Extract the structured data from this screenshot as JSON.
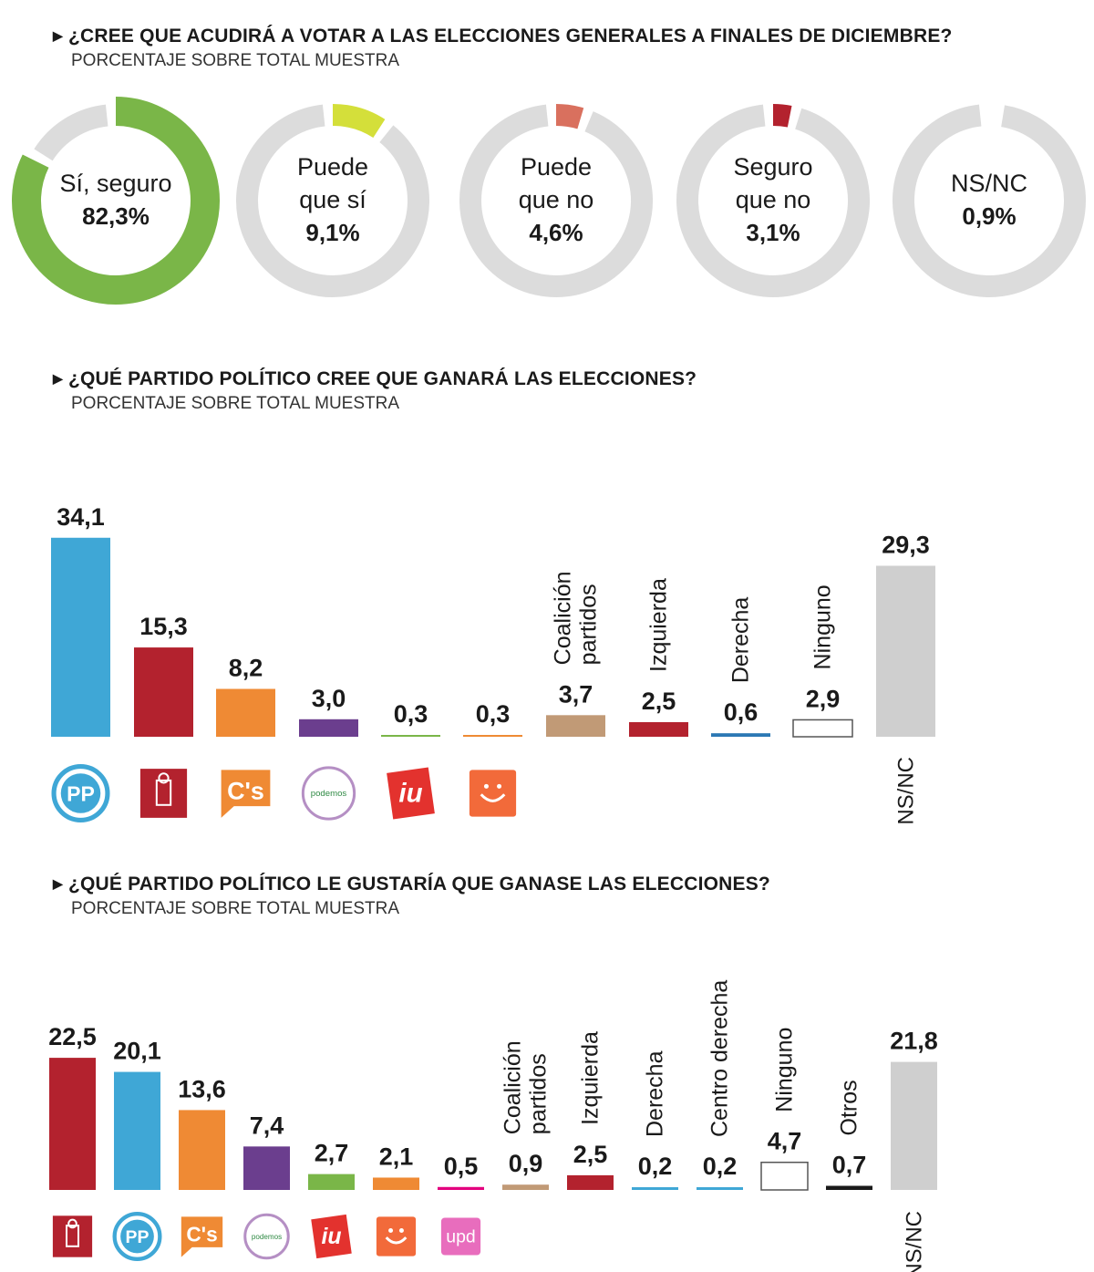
{
  "sections": {
    "turnout": {
      "title": "¿CREE QUE ACUDIRÁ A VOTAR A LAS ELECCIONES GENERALES A FINALES DE DICIEMBRE?",
      "subtitle": "PORCENTAJE SOBRE TOTAL MUESTRA"
    },
    "winner": {
      "title": "¿QUÉ PARTIDO POLÍTICO CREE QUE GANARÁ LAS ELECCIONES?",
      "subtitle": "PORCENTAJE SOBRE TOTAL MUESTRA"
    },
    "preference": {
      "title": "¿QUÉ PARTIDO POLÍTICO LE GUSTARÍA QUE GANASE LAS ELECCIONES?",
      "subtitle": "PORCENTAJE SOBRE TOTAL MUESTRA"
    }
  },
  "colors": {
    "track": "#dcdcdc",
    "si_seguro": "#7ab648",
    "puede_si": "#d4df3a",
    "puede_no": "#d9705e",
    "seguro_no": "#b3222e",
    "pp": "#3fa7d6",
    "psoe": "#b3222e",
    "cs": "#ef8a34",
    "podemos": "#6b3e8e",
    "iu": "#e3322e",
    "upyd": "#e3007e",
    "coalicion": "#c19a76",
    "derecha": "#2c78b4",
    "otros": "#1a1a1a",
    "nsnc": "#cfcfcf"
  },
  "chart_data": [
    {
      "type": "pie",
      "categories": [
        "Sí, seguro",
        "Puede que sí",
        "Puede que no",
        "Seguro que no",
        "NS/NC"
      ],
      "value_labels": [
        "82,3%",
        "9,1%",
        "4,6%",
        "3,1%",
        "0,9%"
      ],
      "values": [
        82.3,
        9.1,
        4.6,
        3.1,
        0.9
      ],
      "colors": [
        "#7ab648",
        "#d4df3a",
        "#d9705e",
        "#b3222e",
        "#bdbdbd"
      ]
    },
    {
      "type": "bar",
      "categories": [
        "PP",
        "PSOE",
        "C's",
        "Podemos",
        "IU",
        "UPyD",
        "Coalición partidos",
        "Izquierda",
        "Derecha",
        "Ninguno",
        "NS/NC"
      ],
      "values": [
        34.1,
        15.3,
        8.2,
        3.0,
        0.3,
        0.3,
        3.7,
        2.5,
        0.6,
        2.9,
        29.3
      ],
      "value_labels": [
        "34,1",
        "15,3",
        "8,2",
        "3,0",
        "0,3",
        "0,3",
        "3,7",
        "2,5",
        "0,6",
        "2,9",
        "29,3"
      ],
      "colors": [
        "#3fa7d6",
        "#b3222e",
        "#ef8a34",
        "#6b3e8e",
        "#7ab648",
        "#ef8a34",
        "#c19a76",
        "#b3222e",
        "#2c78b4",
        "#ffffff",
        "#cfcfcf"
      ],
      "vertical_labels": [
        "",
        "",
        "",
        "",
        "",
        "",
        "Coalición partidos",
        "Izquierda",
        "Derecha",
        "Ninguno",
        ""
      ],
      "bottom_label": "NS/NC",
      "logos": [
        "pp",
        "psoe",
        "cs",
        "podemos",
        "iu",
        "upyd"
      ]
    },
    {
      "type": "bar",
      "categories": [
        "PSOE",
        "PP",
        "C's",
        "Podemos",
        "IU",
        "UPyD",
        "UPD",
        "Coalición partidos",
        "Izquierda",
        "Derecha",
        "Centro derecha",
        "Ninguno",
        "Otros",
        "NS/NC"
      ],
      "values": [
        22.5,
        20.1,
        13.6,
        7.4,
        2.7,
        2.1,
        0.5,
        0.9,
        2.5,
        0.2,
        0.2,
        4.7,
        0.7,
        21.8
      ],
      "value_labels": [
        "22,5",
        "20,1",
        "13,6",
        "7,4",
        "2,7",
        "2,1",
        "0,5",
        "0,9",
        "2,5",
        "0,2",
        "0,2",
        "4,7",
        "0,7",
        "21,8"
      ],
      "colors": [
        "#b3222e",
        "#3fa7d6",
        "#ef8a34",
        "#6b3e8e",
        "#7ab648",
        "#ef8a34",
        "#e3007e",
        "#c19a76",
        "#b3222e",
        "#3fa7d6",
        "#3fa7d6",
        "#ffffff",
        "#1a1a1a",
        "#cfcfcf"
      ],
      "vertical_labels": [
        "",
        "",
        "",
        "",
        "",
        "",
        "",
        "Coalición partidos",
        "Izquierda",
        "Derecha",
        "Centro derecha",
        "Ninguno",
        "Otros",
        ""
      ],
      "bottom_label": "NS/NC",
      "logos": [
        "psoe",
        "pp",
        "cs",
        "podemos",
        "iu",
        "upyd",
        "upd"
      ]
    }
  ],
  "logo_text": {
    "pp": "PP",
    "cs": "C's",
    "podemos": "podemos",
    "iu": "iu",
    "upd": "upd"
  }
}
